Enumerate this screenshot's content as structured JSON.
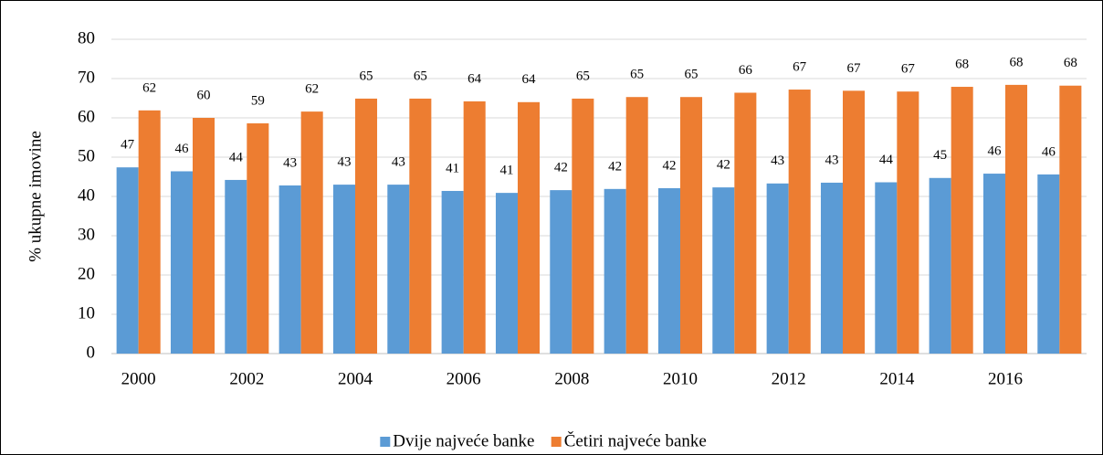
{
  "chart_data": {
    "type": "bar",
    "y_label": "% ukupne imovine",
    "categories": [
      "2000",
      null,
      "2002",
      null,
      "2004",
      null,
      "2006",
      null,
      "2008",
      null,
      "2010",
      null,
      "2012",
      null,
      "2014",
      null,
      "2016",
      null
    ],
    "series": [
      {
        "name": "Dvije najveće banke",
        "color": "#5b9bd5",
        "values": [
          47.4,
          46.4,
          44.2,
          42.8,
          43.0,
          43.0,
          41.4,
          40.9,
          41.6,
          41.9,
          42.1,
          42.3,
          43.3,
          43.5,
          43.6,
          44.7,
          45.8,
          45.6
        ],
        "value_labels": [
          "47",
          "46",
          "44",
          "43",
          "43",
          "43",
          "41",
          "41",
          "42",
          "42",
          "42",
          "42",
          "43",
          "43",
          "44",
          "45",
          "46",
          "46"
        ]
      },
      {
        "name": "Četiri najveće banke",
        "color": "#ed7d31",
        "values": [
          61.9,
          60.0,
          58.6,
          61.6,
          64.9,
          64.9,
          64.2,
          64.0,
          64.9,
          65.3,
          65.3,
          66.4,
          67.2,
          66.9,
          66.7,
          67.9,
          68.4,
          68.2
        ],
        "value_labels": [
          "62",
          "60",
          "59",
          "62",
          "65",
          "65",
          "64",
          "64",
          "65",
          "65",
          "65",
          "66",
          "67",
          "67",
          "67",
          "68",
          "68",
          "68"
        ]
      }
    ],
    "ylim": [
      0,
      80
    ],
    "yticks": [
      0,
      10,
      20,
      30,
      40,
      50,
      60,
      70,
      80
    ],
    "grid": true,
    "legend": "bottom"
  }
}
